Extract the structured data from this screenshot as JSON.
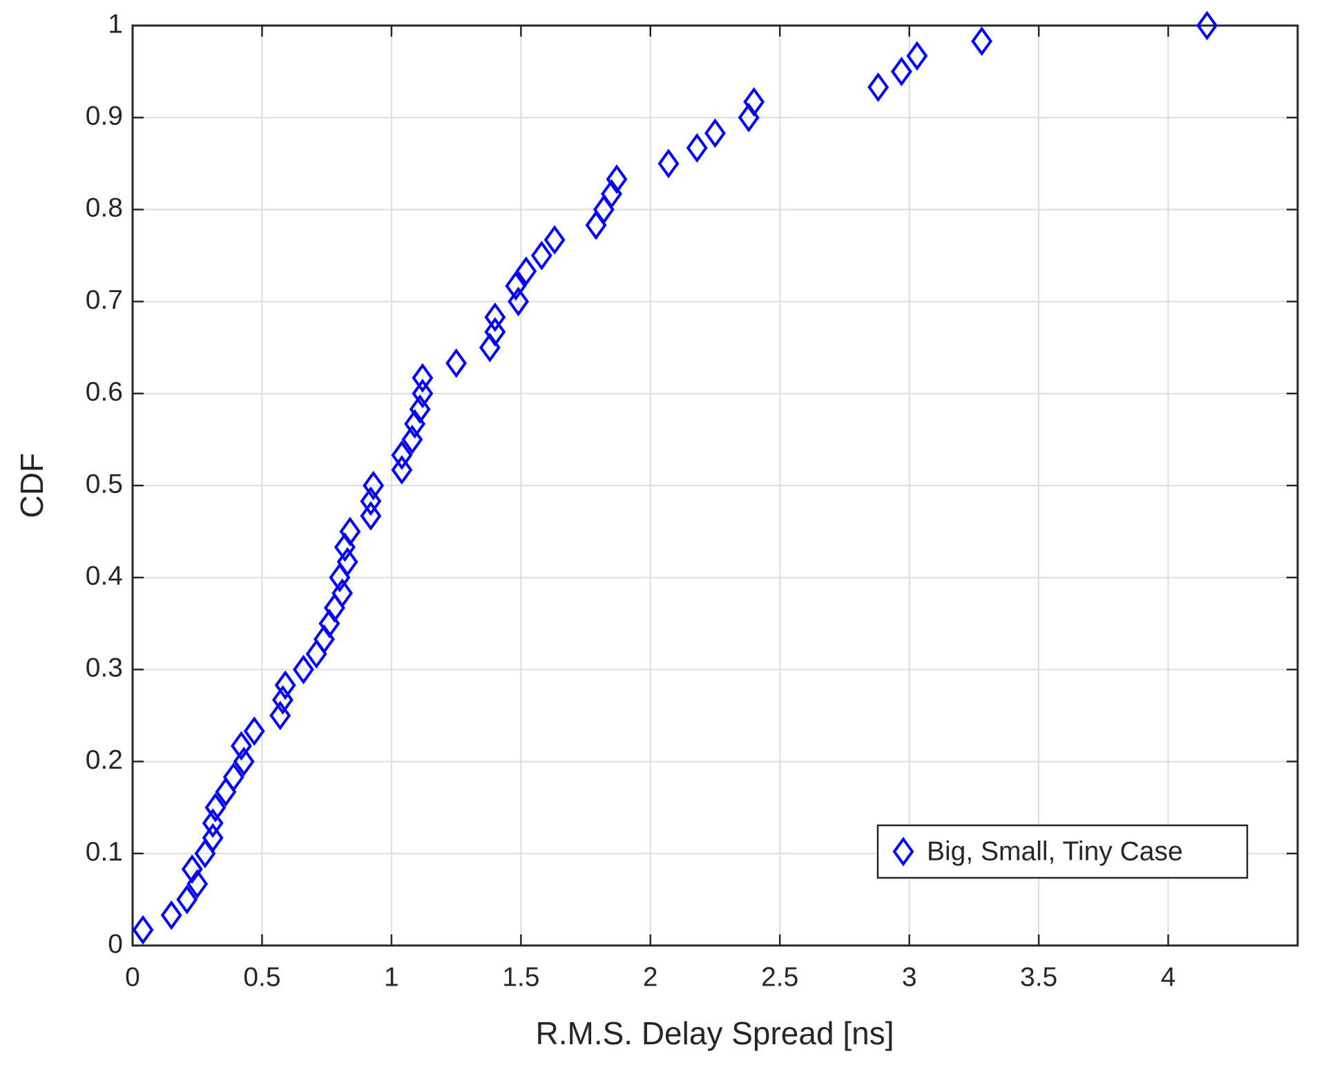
{
  "chart_data": {
    "type": "scatter",
    "xlabel": "R.M.S. Delay Spread [ns]",
    "ylabel": "CDF",
    "x": [
      0.04,
      0.15,
      0.21,
      0.25,
      0.23,
      0.28,
      0.31,
      0.31,
      0.32,
      0.36,
      0.39,
      0.43,
      0.42,
      0.47,
      0.57,
      0.58,
      0.59,
      0.66,
      0.71,
      0.74,
      0.76,
      0.78,
      0.81,
      0.8,
      0.83,
      0.82,
      0.84,
      0.92,
      0.92,
      0.93,
      1.04,
      1.04,
      1.08,
      1.09,
      1.11,
      1.12,
      1.12,
      1.25,
      1.38,
      1.4,
      1.4,
      1.49,
      1.48,
      1.52,
      1.58,
      1.63,
      1.79,
      1.82,
      1.85,
      1.87,
      2.07,
      2.18,
      2.25,
      2.38,
      2.4,
      2.88,
      2.97,
      3.03,
      3.28,
      4.15
    ],
    "series": [
      {
        "name": "Big, Small, Tiny Case",
        "color": "#0000ff",
        "values": [
          0.017,
          0.033,
          0.05,
          0.067,
          0.083,
          0.1,
          0.117,
          0.133,
          0.15,
          0.167,
          0.183,
          0.2,
          0.217,
          0.233,
          0.25,
          0.267,
          0.283,
          0.3,
          0.317,
          0.333,
          0.35,
          0.367,
          0.383,
          0.4,
          0.417,
          0.433,
          0.45,
          0.467,
          0.483,
          0.5,
          0.517,
          0.533,
          0.55,
          0.567,
          0.583,
          0.6,
          0.617,
          0.633,
          0.65,
          0.667,
          0.683,
          0.7,
          0.717,
          0.733,
          0.75,
          0.767,
          0.783,
          0.8,
          0.817,
          0.833,
          0.85,
          0.867,
          0.883,
          0.9,
          0.917,
          0.933,
          0.95,
          0.967,
          0.983,
          1.0
        ]
      }
    ],
    "xlim": [
      0,
      4.5
    ],
    "ylim": [
      0,
      1
    ],
    "xticks": [
      0,
      0.5,
      1,
      1.5,
      2,
      2.5,
      3,
      3.5,
      4
    ],
    "yticks": [
      0,
      0.1,
      0.2,
      0.3,
      0.4,
      0.5,
      0.6,
      0.7,
      0.8,
      0.9,
      1
    ],
    "grid": true,
    "legend": "lower right"
  }
}
